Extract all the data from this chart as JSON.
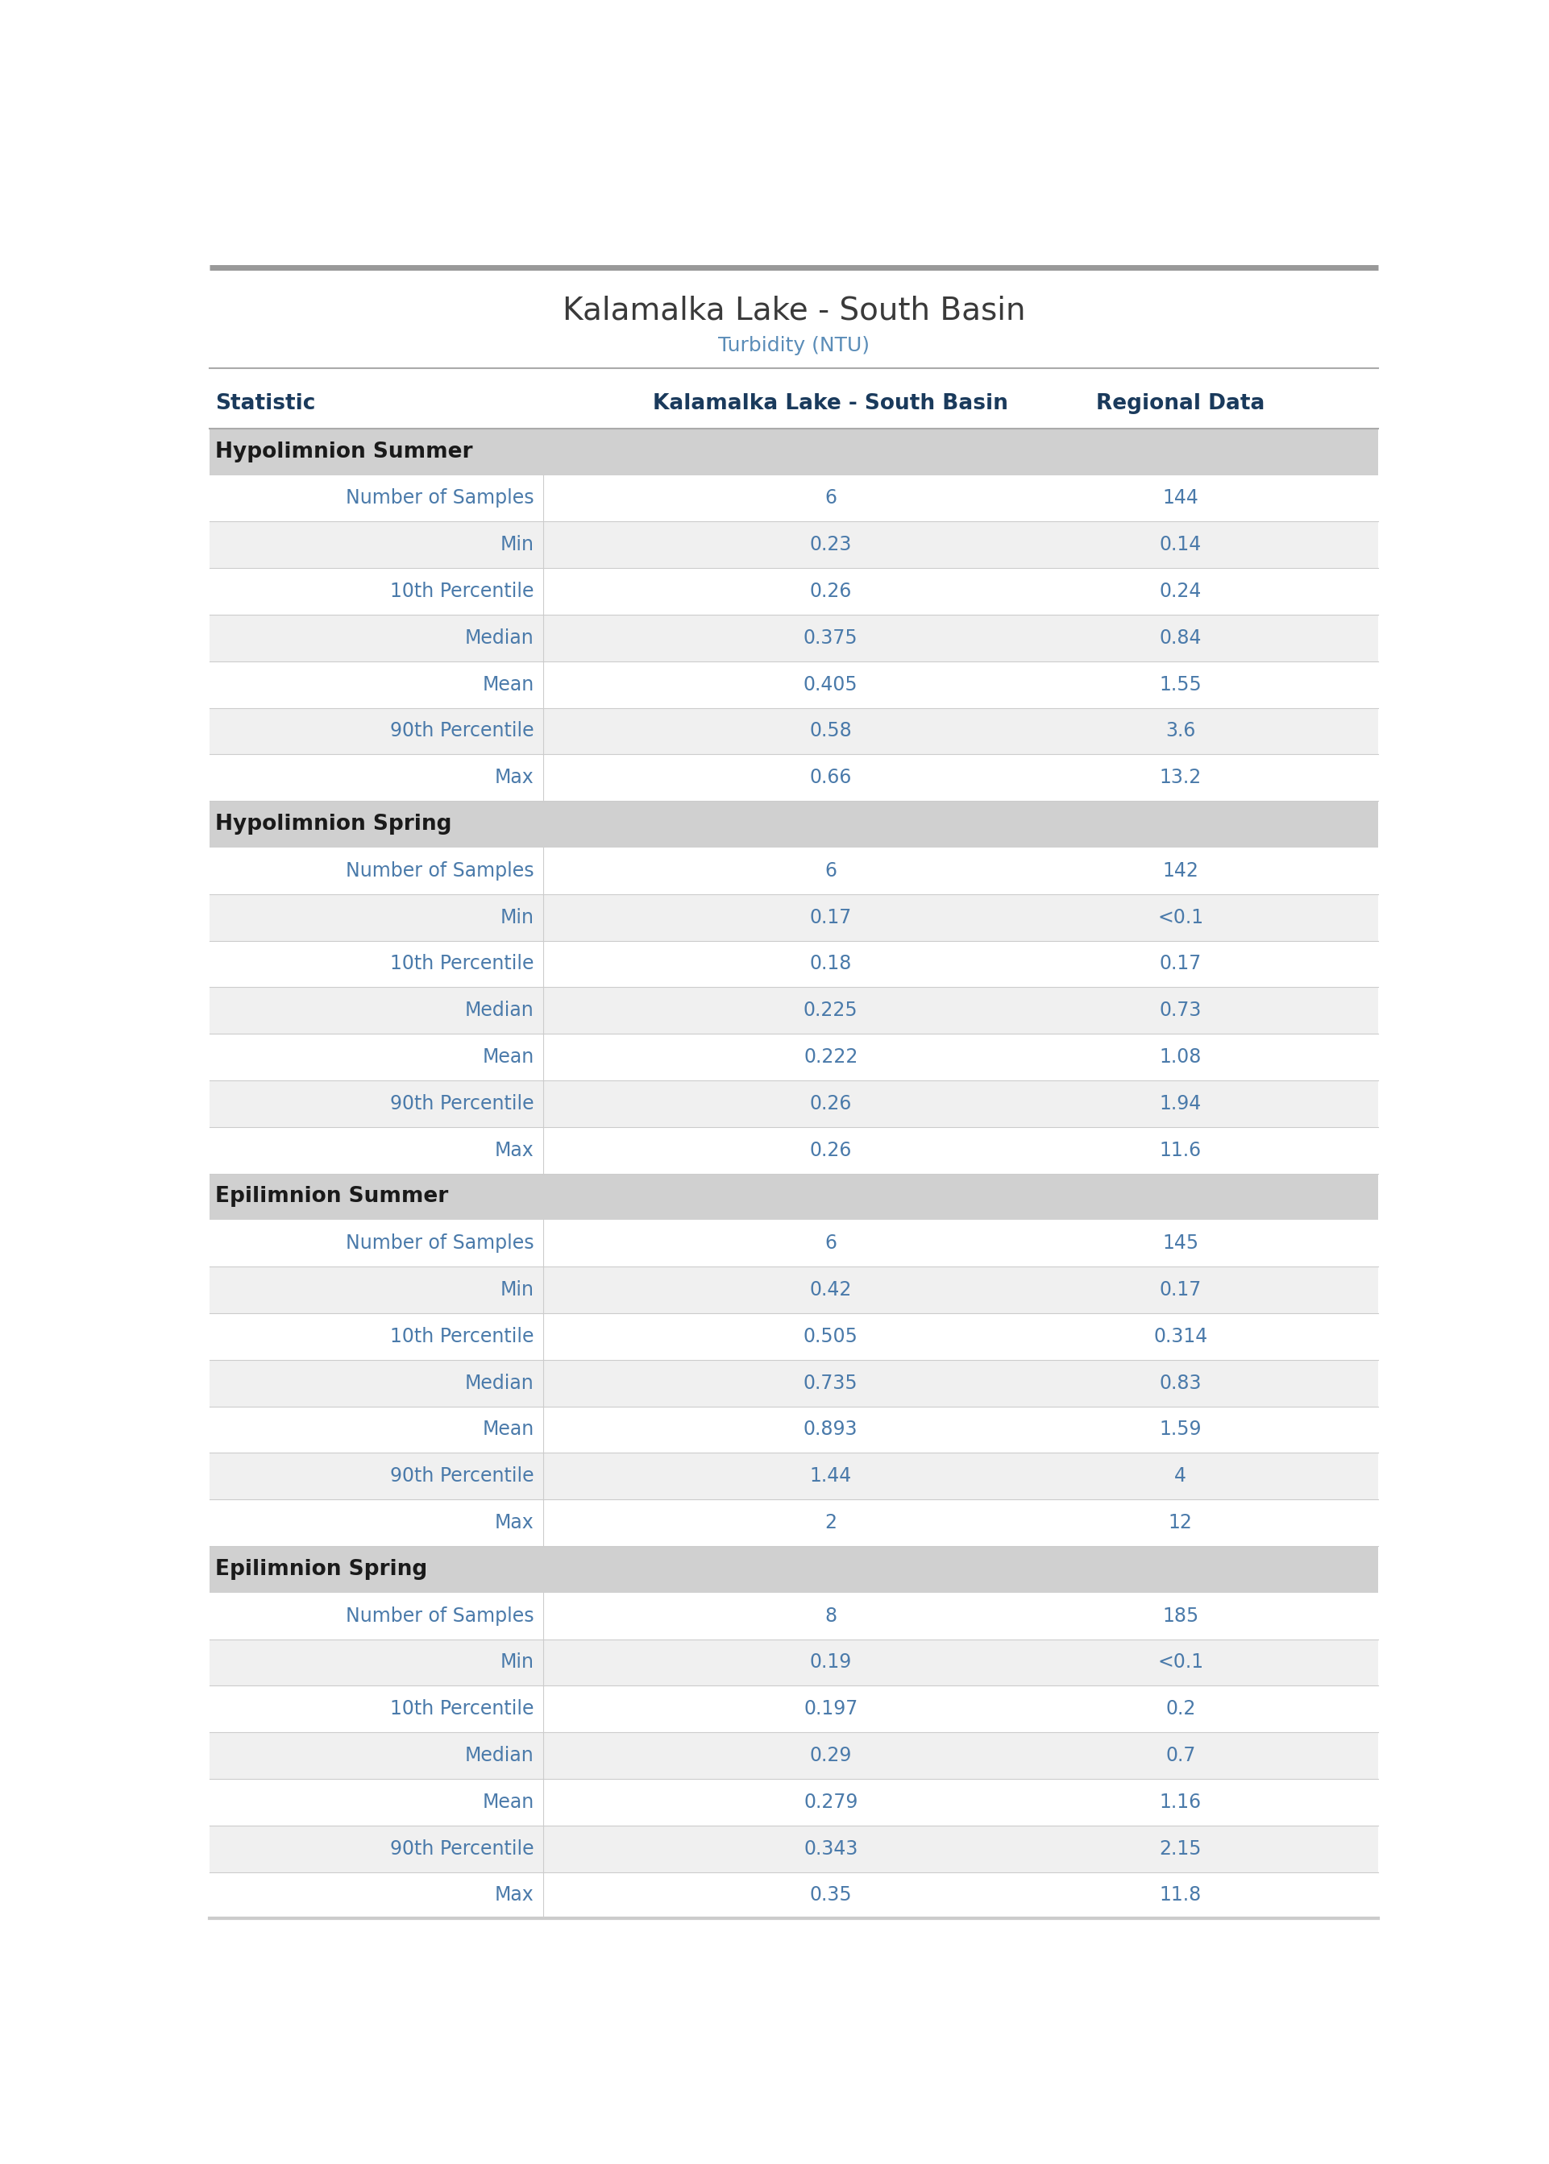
{
  "title": "Kalamalka Lake - South Basin",
  "subtitle": "Turbidity (NTU)",
  "col_headers": [
    "Statistic",
    "Kalamalka Lake - South Basin",
    "Regional Data"
  ],
  "sections": [
    {
      "name": "Hypolimnion Summer",
      "rows": [
        [
          "Number of Samples",
          "6",
          "144"
        ],
        [
          "Min",
          "0.23",
          "0.14"
        ],
        [
          "10th Percentile",
          "0.26",
          "0.24"
        ],
        [
          "Median",
          "0.375",
          "0.84"
        ],
        [
          "Mean",
          "0.405",
          "1.55"
        ],
        [
          "90th Percentile",
          "0.58",
          "3.6"
        ],
        [
          "Max",
          "0.66",
          "13.2"
        ]
      ]
    },
    {
      "name": "Hypolimnion Spring",
      "rows": [
        [
          "Number of Samples",
          "6",
          "142"
        ],
        [
          "Min",
          "0.17",
          "<0.1"
        ],
        [
          "10th Percentile",
          "0.18",
          "0.17"
        ],
        [
          "Median",
          "0.225",
          "0.73"
        ],
        [
          "Mean",
          "0.222",
          "1.08"
        ],
        [
          "90th Percentile",
          "0.26",
          "1.94"
        ],
        [
          "Max",
          "0.26",
          "11.6"
        ]
      ]
    },
    {
      "name": "Epilimnion Summer",
      "rows": [
        [
          "Number of Samples",
          "6",
          "145"
        ],
        [
          "Min",
          "0.42",
          "0.17"
        ],
        [
          "10th Percentile",
          "0.505",
          "0.314"
        ],
        [
          "Median",
          "0.735",
          "0.83"
        ],
        [
          "Mean",
          "0.893",
          "1.59"
        ],
        [
          "90th Percentile",
          "1.44",
          "4"
        ],
        [
          "Max",
          "2",
          "12"
        ]
      ]
    },
    {
      "name": "Epilimnion Spring",
      "rows": [
        [
          "Number of Samples",
          "8",
          "185"
        ],
        [
          "Min",
          "0.19",
          "<0.1"
        ],
        [
          "10th Percentile",
          "0.197",
          "0.2"
        ],
        [
          "Median",
          "0.29",
          "0.7"
        ],
        [
          "Mean",
          "0.279",
          "1.16"
        ],
        [
          "90th Percentile",
          "0.343",
          "2.15"
        ],
        [
          "Max",
          "0.35",
          "11.8"
        ]
      ]
    }
  ],
  "title_color": "#3a3a3a",
  "subtitle_color": "#5b8db8",
  "header_text_color": "#1a3a5c",
  "section_bg_color": "#d0d0d0",
  "section_text_color": "#1a1a1a",
  "row_odd_bg": "#f0f0f0",
  "row_even_bg": "#ffffff",
  "text_color": "#4a7aaa",
  "divider_color": "#cccccc",
  "top_bar_color": "#999999",
  "bottom_bar_color": "#cccccc",
  "header_divider_color": "#aaaaaa",
  "title_fontsize": 28,
  "subtitle_fontsize": 18,
  "header_fontsize": 19,
  "section_fontsize": 19,
  "data_fontsize": 17
}
